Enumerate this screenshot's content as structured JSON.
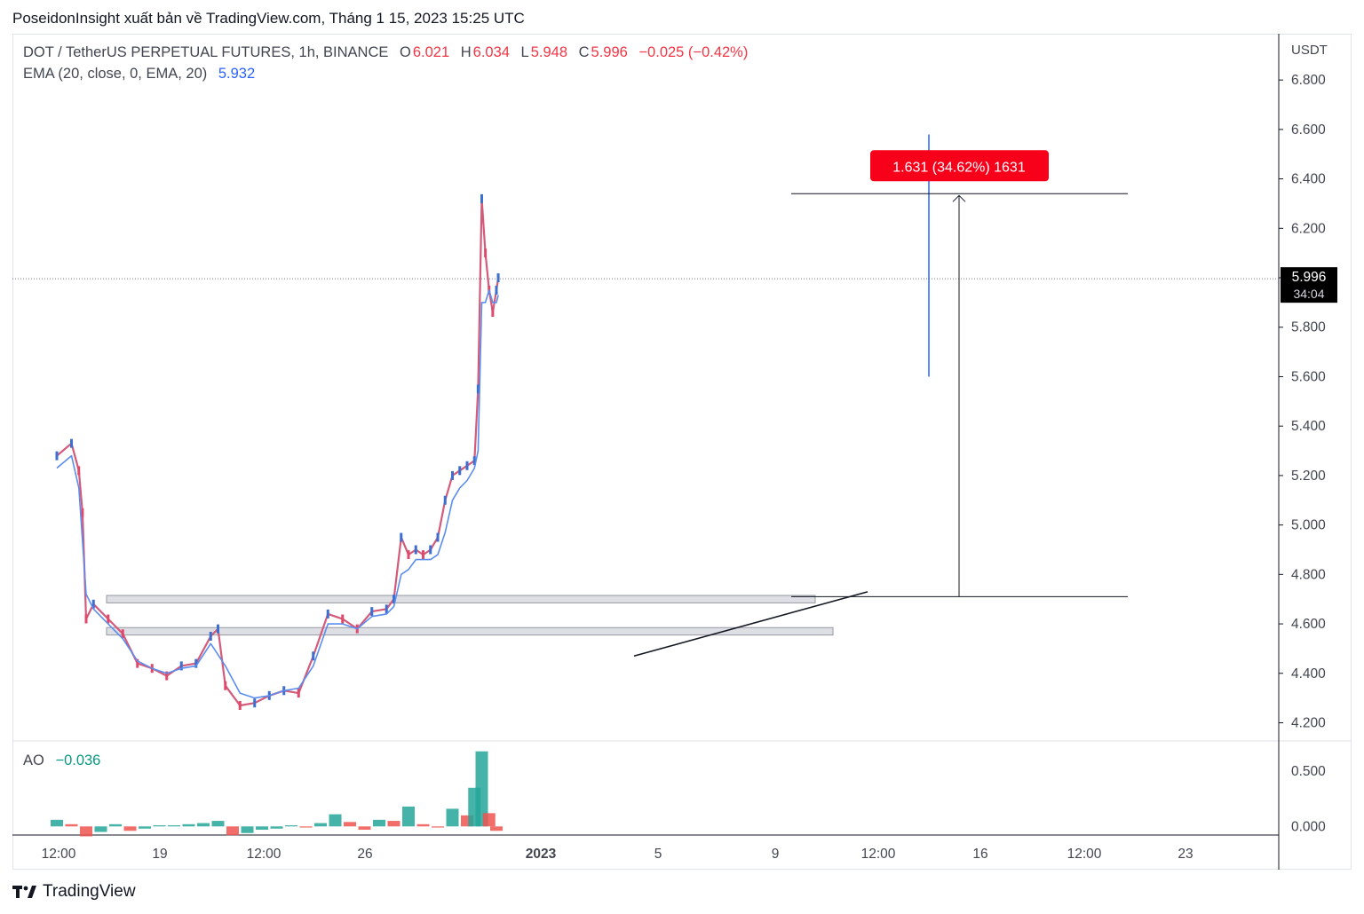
{
  "header_text": "PoseidonInsight xuất bản về TradingView.com, Tháng 1 15, 2023 15:25 UTC",
  "legend": {
    "symbol": "DOT / TetherUS PERPETUAL FUTURES, 1h, BINANCE",
    "o_label": "O",
    "o_value": "6.021",
    "h_label": "H",
    "h_value": "6.034",
    "l_label": "L",
    "l_value": "5.948",
    "c_label": "C",
    "c_value": "5.996",
    "change": "−0.025 (−0.42%)",
    "ema_label": "EMA (20, close, 0, EMA, 20)",
    "ema_value": "5.932",
    "ao_label": "AO",
    "ao_value": "−0.036"
  },
  "colors": {
    "up": "#26a69a",
    "down": "#ef5350",
    "ema": "#2962ff",
    "grid": "#e0e3eb",
    "text": "#131722",
    "axis_text": "#434651"
  },
  "footer": {
    "brand": "TradingView",
    "logo_icon": "tradingview-logo-icon"
  },
  "chart_data": [
    {
      "type": "line",
      "title": "",
      "y_unit": "USDT",
      "ylim": [
        4.13,
        6.98
      ],
      "y_ticks": [
        "6.800",
        "6.600",
        "6.400",
        "6.200",
        "6.000",
        "5.800",
        "5.600",
        "5.400",
        "5.200",
        "5.000",
        "4.800",
        "4.600",
        "4.400",
        "4.200"
      ],
      "x_ticks": [
        "12:00",
        "19",
        "12:00",
        "26",
        "2023",
        "5",
        "9",
        "12:00",
        "16",
        "12:00",
        "23"
      ],
      "x_tick_bold": [
        false,
        false,
        false,
        false,
        true,
        false,
        false,
        false,
        false,
        false,
        false
      ],
      "series": [
        {
          "type": "line",
          "x": [
            "Dec 16 12:00",
            "Dec 17 12:00",
            "Dec 18 00:00",
            "Dec 18 06:00",
            "Dec 18 12:00",
            "Dec 19 00:00",
            "Dec 20 00:00",
            "Dec 21 00:00",
            "Dec 22 00:00",
            "Dec 23 00:00",
            "Dec 24 00:00",
            "Dec 25 00:00",
            "Dec 26 00:00",
            "Dec 27 00:00",
            "Dec 27 12:00",
            "Dec 28 00:00",
            "Dec 29 00:00",
            "Dec 30 00:00",
            "Dec 31 00:00",
            "Jan 1 00:00",
            "Jan 2 00:00",
            "Jan 3 00:00",
            "Jan 4 00:00",
            "Jan 5 00:00",
            "Jan 6 00:00",
            "Jan 7 00:00",
            "Jan 8 00:00",
            "Jan 8 12:00",
            "Jan 9 00:00",
            "Jan 9 12:00",
            "Jan 10 00:00",
            "Jan 10 12:00",
            "Jan 11 00:00",
            "Jan 11 12:00",
            "Jan 12 00:00",
            "Jan 12 12:00",
            "Jan 13 00:00",
            "Jan 13 12:00",
            "Jan 14 00:00",
            "Jan 14 06:00",
            "Jan 14 12:00",
            "Jan 14 18:00",
            "Jan 15 00:00",
            "Jan 15 06:00",
            "Jan 15 12:00",
            "Jan 15 15:00"
          ],
          "values": [
            5.28,
            5.33,
            5.22,
            5.05,
            4.62,
            4.68,
            4.62,
            4.56,
            4.44,
            4.42,
            4.39,
            4.43,
            4.44,
            4.55,
            4.58,
            4.35,
            4.27,
            4.28,
            4.31,
            4.33,
            4.32,
            4.47,
            4.64,
            4.62,
            4.58,
            4.65,
            4.66,
            4.7,
            4.95,
            4.88,
            4.9,
            4.88,
            4.9,
            4.95,
            5.1,
            5.2,
            5.22,
            5.24,
            5.26,
            5.55,
            6.32,
            6.1,
            5.95,
            5.86,
            5.95,
            6.0
          ]
        },
        {
          "name": "EMA (20, close, 0, EMA, 20)",
          "type": "line",
          "x": [
            "Dec 16 12:00",
            "Dec 17 12:00",
            "Dec 18 00:00",
            "Dec 18 12:00",
            "Dec 19 00:00",
            "Dec 20 00:00",
            "Dec 21 00:00",
            "Dec 22 00:00",
            "Dec 23 00:00",
            "Dec 24 00:00",
            "Dec 25 00:00",
            "Dec 26 00:00",
            "Dec 27 00:00",
            "Dec 28 00:00",
            "Dec 29 00:00",
            "Dec 30 00:00",
            "Dec 31 00:00",
            "Jan 1 00:00",
            "Jan 2 00:00",
            "Jan 3 00:00",
            "Jan 4 00:00",
            "Jan 5 00:00",
            "Jan 6 00:00",
            "Jan 7 00:00",
            "Jan 8 00:00",
            "Jan 8 12:00",
            "Jan 9 00:00",
            "Jan 9 12:00",
            "Jan 10 00:00",
            "Jan 11 00:00",
            "Jan 11 12:00",
            "Jan 12 00:00",
            "Jan 12 12:00",
            "Jan 13 00:00",
            "Jan 13 12:00",
            "Jan 14 00:00",
            "Jan 14 06:00",
            "Jan 14 12:00",
            "Jan 14 18:00",
            "Jan 15 00:00",
            "Jan 15 06:00",
            "Jan 15 12:00",
            "Jan 15 15:00"
          ],
          "values": [
            5.23,
            5.28,
            5.15,
            4.72,
            4.66,
            4.6,
            4.54,
            4.45,
            4.42,
            4.4,
            4.42,
            4.43,
            4.52,
            4.43,
            4.32,
            4.3,
            4.31,
            4.33,
            4.34,
            4.43,
            4.6,
            4.6,
            4.58,
            4.63,
            4.64,
            4.67,
            4.8,
            4.82,
            4.86,
            4.86,
            4.88,
            4.97,
            5.1,
            5.15,
            5.18,
            5.23,
            5.3,
            5.9,
            5.9,
            5.95,
            5.9,
            5.9,
            5.93
          ]
        }
      ],
      "last_price_label": "5.996",
      "countdown_label": "34:04",
      "measure_label": "1.631 (34.62%) 1631",
      "measure_range": [
        4.71,
        6.34
      ],
      "support_zones": [
        [
          4.685,
          4.715
        ],
        [
          4.555,
          4.585
        ]
      ],
      "trendline": [
        [
          "Jan 4 00:00",
          4.47
        ],
        [
          "Jan 11 00:00",
          4.73
        ]
      ],
      "last_price_line": 5.996,
      "high_marker": 6.58
    },
    {
      "type": "bar",
      "title": "",
      "ylim": [
        -0.07,
        0.75
      ],
      "y_ticks": [
        "0.500",
        "0.000"
      ],
      "x": [
        "Dec 16 12:00",
        "Dec 17 12:00",
        "Dec 18 12:00",
        "Dec 19 12:00",
        "Dec 20 12:00",
        "Dec 21 12:00",
        "Dec 22 12:00",
        "Dec 23 12:00",
        "Dec 24 12:00",
        "Dec 25 12:00",
        "Dec 26 12:00",
        "Dec 27 12:00",
        "Dec 28 12:00",
        "Dec 29 12:00",
        "Dec 30 12:00",
        "Dec 31 12:00",
        "Jan 1 12:00",
        "Jan 2 12:00",
        "Jan 3 12:00",
        "Jan 4 12:00",
        "Jan 5 12:00",
        "Jan 6 12:00",
        "Jan 7 12:00",
        "Jan 8 12:00",
        "Jan 9 12:00",
        "Jan 10 12:00",
        "Jan 11 12:00",
        "Jan 12 12:00",
        "Jan 13 12:00",
        "Jan 14 00:00",
        "Jan 14 12:00",
        "Jan 15 00:00",
        "Jan 15 12:00"
      ],
      "values": [
        0.06,
        0.02,
        -0.09,
        -0.05,
        0.02,
        -0.04,
        -0.02,
        0.01,
        0.01,
        0.02,
        0.03,
        0.05,
        -0.08,
        -0.06,
        -0.03,
        -0.02,
        0.01,
        -0.01,
        0.03,
        0.11,
        0.04,
        -0.03,
        0.06,
        0.05,
        0.18,
        0.02,
        -0.01,
        0.16,
        0.1,
        0.35,
        0.68,
        0.12,
        -0.04
      ],
      "name": "AO"
    }
  ]
}
